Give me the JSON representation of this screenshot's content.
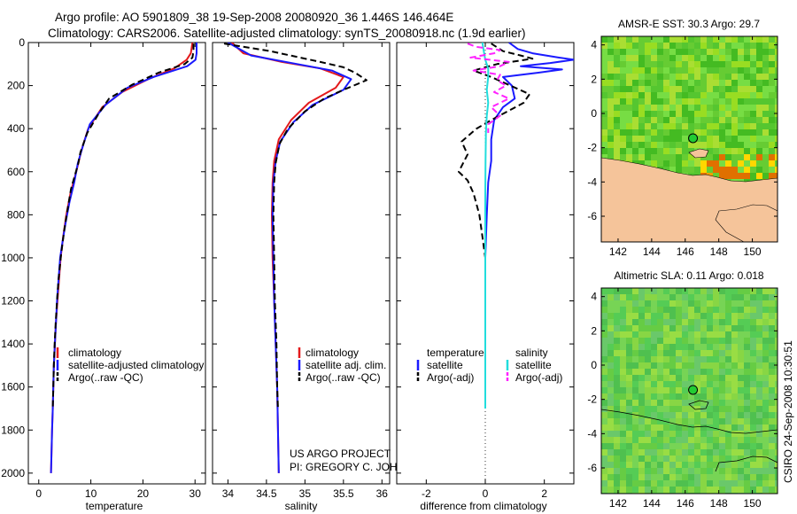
{
  "title_line1": "Argo profile: AO 5901809_38 19-Sep-2008 20080920_36 1.446S 146.464E",
  "title_line2": "Climatology: CARS2006. Satellite-adjusted climatology: synTS_20080918.nc (1.9d earlier)",
  "credit_line1": "US ARGO PROJECT",
  "credit_line2": "PI: GREGORY C. JOHNSON",
  "timestamp": "CSIRO 24-Sep-2008 10:30:51",
  "colors": {
    "climatology": "#e41a1c",
    "satellite": "#1a1aff",
    "argo": "#000000",
    "sal_satellite": "#22dddd",
    "sal_argo": "#ff22ff",
    "land": "#f5c49a"
  },
  "chart_data": [
    {
      "type": "line",
      "xlabel": "temperature",
      "xlim": [
        -2,
        32
      ],
      "ylim": [
        0,
        2050
      ],
      "xticks": [
        0,
        10,
        20,
        30
      ],
      "xtick_labels": [
        "0",
        "10",
        "20",
        "30"
      ],
      "yticks": [
        0,
        200,
        400,
        600,
        800,
        1000,
        1200,
        1400,
        1600,
        1800,
        2000
      ],
      "ytick_labels": [
        "0",
        "200",
        "400",
        "600",
        "800",
        "1000",
        "1200",
        "1400",
        "1600",
        "1800",
        "2000"
      ],
      "legend": [
        "climatology",
        "satellite-adjusted climatology",
        "Argo(..raw -QC)"
      ],
      "series": [
        {
          "name": "climatology",
          "style": "solid",
          "color": "#e41a1c",
          "points": [
            [
              29.5,
              0
            ],
            [
              29.2,
              50
            ],
            [
              28.4,
              80
            ],
            [
              26,
              120
            ],
            [
              21,
              170
            ],
            [
              16,
              230
            ],
            [
              12.2,
              300
            ],
            [
              9.5,
              400
            ],
            [
              8.2,
              500
            ],
            [
              7.2,
              600
            ],
            [
              6.1,
              700
            ],
            [
              5.3,
              800
            ],
            [
              4.7,
              900
            ],
            [
              4.2,
              1000
            ],
            [
              3.9,
              1100
            ],
            [
              3.6,
              1200
            ],
            [
              3.3,
              1300
            ],
            [
              3.1,
              1400
            ],
            [
              2.9,
              1500
            ],
            [
              2.8,
              1600
            ],
            [
              2.7,
              1700
            ],
            [
              2.55,
              1800
            ],
            [
              2.45,
              1900
            ],
            [
              2.35,
              2000
            ]
          ]
        },
        {
          "name": "satellite-adjusted climatology",
          "style": "solid",
          "color": "#1a1aff",
          "points": [
            [
              30.3,
              0
            ],
            [
              30.3,
              50
            ],
            [
              30.1,
              80
            ],
            [
              28.5,
              110
            ],
            [
              22,
              160
            ],
            [
              17,
              210
            ],
            [
              12.8,
              290
            ],
            [
              9.8,
              380
            ],
            [
              8.6,
              470
            ],
            [
              7.5,
              560
            ],
            [
              6.8,
              650
            ],
            [
              5.9,
              740
            ],
            [
              5.2,
              830
            ],
            [
              4.6,
              920
            ],
            [
              4.1,
              1000
            ],
            [
              3.8,
              1100
            ],
            [
              3.5,
              1200
            ],
            [
              3.3,
              1300
            ],
            [
              3.1,
              1400
            ],
            [
              2.9,
              1500
            ],
            [
              2.8,
              1600
            ],
            [
              2.7,
              1700
            ],
            [
              2.55,
              1800
            ],
            [
              2.45,
              1900
            ],
            [
              2.35,
              2000
            ]
          ]
        },
        {
          "name": "Argo(..raw -QC)",
          "style": "dashed",
          "color": "#000000",
          "points": [
            [
              29.7,
              5
            ],
            [
              29.7,
              40
            ],
            [
              29.5,
              70
            ],
            [
              28,
              100
            ],
            [
              23,
              140
            ],
            [
              18,
              195
            ],
            [
              13.5,
              260
            ],
            [
              11.5,
              330
            ],
            [
              9.3,
              420
            ],
            [
              8,
              510
            ],
            [
              7.6,
              560
            ],
            [
              6.2,
              680
            ],
            [
              5.5,
              780
            ],
            [
              4.9,
              870
            ],
            [
              4.3,
              980
            ],
            [
              3.8,
              1100
            ],
            [
              3.5,
              1200
            ],
            [
              3.25,
              1300
            ],
            [
              3.05,
              1400
            ],
            [
              2.9,
              1500
            ],
            [
              2.8,
              1600
            ],
            [
              2.7,
              1700
            ]
          ]
        }
      ]
    },
    {
      "type": "line",
      "xlabel": "salinity",
      "xlim": [
        33.8,
        36.1
      ],
      "ylim": [
        0,
        2050
      ],
      "xticks": [
        34,
        34.5,
        35,
        35.5,
        36
      ],
      "xtick_labels": [
        "34",
        "34.5",
        "35",
        "35.5",
        "36"
      ],
      "legend": [
        "climatology",
        "satellite adj. clim.",
        "Argo(..raw -QC)"
      ],
      "series": [
        {
          "name": "climatology",
          "style": "solid",
          "color": "#e41a1c",
          "points": [
            [
              34.05,
              0
            ],
            [
              34.2,
              50
            ],
            [
              34.7,
              90
            ],
            [
              35.2,
              120
            ],
            [
              35.5,
              160
            ],
            [
              35.4,
              210
            ],
            [
              35.05,
              280
            ],
            [
              34.82,
              360
            ],
            [
              34.66,
              450
            ],
            [
              34.6,
              550
            ],
            [
              34.58,
              650
            ],
            [
              34.57,
              800
            ],
            [
              34.58,
              1000
            ],
            [
              34.6,
              1200
            ],
            [
              34.62,
              1400
            ],
            [
              34.64,
              1600
            ],
            [
              34.65,
              1800
            ],
            [
              34.66,
              2000
            ]
          ]
        },
        {
          "name": "satellite adj. clim.",
          "style": "solid",
          "color": "#1a1aff",
          "points": [
            [
              34.0,
              0
            ],
            [
              34.3,
              60
            ],
            [
              34.9,
              100
            ],
            [
              35.35,
              130
            ],
            [
              35.6,
              170
            ],
            [
              35.5,
              220
            ],
            [
              35.1,
              290
            ],
            [
              34.85,
              370
            ],
            [
              34.68,
              460
            ],
            [
              34.62,
              550
            ],
            [
              34.59,
              650
            ],
            [
              34.58,
              800
            ],
            [
              34.59,
              1000
            ],
            [
              34.6,
              1200
            ],
            [
              34.62,
              1400
            ],
            [
              34.64,
              1600
            ],
            [
              34.65,
              1800
            ],
            [
              34.66,
              2000
            ]
          ]
        },
        {
          "name": "Argo(..raw -QC)",
          "style": "dashed",
          "color": "#000000",
          "points": [
            [
              33.95,
              5
            ],
            [
              34.55,
              40
            ],
            [
              35.2,
              90
            ],
            [
              35.5,
              115
            ],
            [
              35.65,
              140
            ],
            [
              35.8,
              175
            ],
            [
              35.5,
              220
            ],
            [
              35.25,
              260
            ],
            [
              35.0,
              320
            ],
            [
              34.78,
              400
            ],
            [
              34.67,
              470
            ],
            [
              34.62,
              560
            ],
            [
              34.6,
              650
            ],
            [
              34.59,
              800
            ],
            [
              34.6,
              1000
            ],
            [
              34.61,
              1200
            ],
            [
              34.63,
              1400
            ],
            [
              34.64,
              1600
            ],
            [
              34.65,
              1700
            ]
          ]
        }
      ]
    },
    {
      "type": "line",
      "xlabel": "difference from climatology",
      "xlim": [
        -3,
        3
      ],
      "ylim": [
        0,
        2050
      ],
      "xticks": [
        -2,
        0,
        2
      ],
      "xtick_labels": [
        "-2",
        "0",
        "2"
      ],
      "legend_temperature": {
        "heading": "temperature",
        "items": [
          "satellite",
          "Argo(-adj)"
        ]
      },
      "legend_salinity": {
        "heading": "salinity",
        "items": [
          "satellite",
          "Argo(-adj)"
        ]
      },
      "series": [
        {
          "name": "temperature satellite",
          "style": "solid",
          "color": "#1a1aff",
          "points": [
            [
              0.8,
              0
            ],
            [
              1.1,
              30
            ],
            [
              1.6,
              50
            ],
            [
              2.5,
              70
            ],
            [
              3.0,
              80
            ],
            [
              2.2,
              95
            ],
            [
              1.2,
              110
            ],
            [
              2.6,
              125
            ],
            [
              1.8,
              140
            ],
            [
              0.6,
              160
            ],
            [
              0.9,
              200
            ],
            [
              1.0,
              260
            ],
            [
              0.6,
              300
            ],
            [
              0.3,
              360
            ],
            [
              0.2,
              450
            ],
            [
              0.2,
              550
            ],
            [
              0.1,
              650
            ],
            [
              0.05,
              800
            ],
            [
              0.0,
              1000
            ],
            [
              0.0,
              1400
            ],
            [
              0.0,
              1700
            ]
          ]
        },
        {
          "name": "temperature Argo(-adj)",
          "style": "dashed",
          "color": "#000000",
          "points": [
            [
              0.2,
              5
            ],
            [
              0.6,
              40
            ],
            [
              1.2,
              60
            ],
            [
              1.6,
              75
            ],
            [
              0.4,
              100
            ],
            [
              -0.4,
              130
            ],
            [
              0.2,
              160
            ],
            [
              1.5,
              240
            ],
            [
              1.3,
              280
            ],
            [
              0.2,
              360
            ],
            [
              -0.3,
              400
            ],
            [
              -0.8,
              460
            ],
            [
              -0.6,
              520
            ],
            [
              -0.9,
              600
            ],
            [
              -0.6,
              640
            ],
            [
              -0.4,
              700
            ],
            [
              -0.2,
              800
            ],
            [
              -0.1,
              900
            ],
            [
              0,
              1000
            ],
            [
              0,
              1300
            ],
            [
              0,
              1700
            ]
          ]
        },
        {
          "name": "salinity satellite",
          "style": "solid",
          "color": "#22dddd",
          "points": [
            [
              -0.1,
              0
            ],
            [
              -0.05,
              40
            ],
            [
              0,
              80
            ],
            [
              0.1,
              120
            ],
            [
              0.1,
              160
            ],
            [
              0.05,
              220
            ],
            [
              0.1,
              280
            ],
            [
              0.05,
              340
            ],
            [
              0.02,
              420
            ],
            [
              0.01,
              550
            ],
            [
              0.0,
              700
            ],
            [
              0.0,
              1000
            ],
            [
              0.0,
              1300
            ],
            [
              0.0,
              1700
            ]
          ]
        },
        {
          "name": "salinity Argo(-adj)",
          "style": "dashed",
          "color": "#ff22ff",
          "points": [
            [
              -0.6,
              5
            ],
            [
              -0.3,
              20
            ],
            [
              0.5,
              35
            ],
            [
              0.3,
              50
            ],
            [
              -0.5,
              70
            ],
            [
              0.8,
              90
            ],
            [
              0.5,
              110
            ],
            [
              -0.4,
              130
            ],
            [
              0.5,
              150
            ],
            [
              0.4,
              175
            ],
            [
              0.7,
              200
            ],
            [
              0.3,
              230
            ],
            [
              0.8,
              260
            ],
            [
              0.2,
              300
            ],
            [
              0.5,
              340
            ],
            [
              0.1,
              380
            ],
            [
              0.1,
              420
            ]
          ]
        }
      ]
    },
    {
      "type": "heatmap",
      "title": "AMSR-E SST: 30.3 Argo: 29.7",
      "xlim": [
        141,
        151.5
      ],
      "ylim": [
        -7.5,
        4.5
      ],
      "xticks": [
        142,
        144,
        146,
        148,
        150
      ],
      "xtick_labels": [
        "142",
        "144",
        "146",
        "148",
        "150"
      ],
      "yticks": [
        -6,
        -4,
        -2,
        0,
        2,
        4
      ],
      "ytick_labels": [
        "-6",
        "-4",
        "-2",
        "0",
        "2",
        "4"
      ],
      "argo_position": [
        146.464,
        -1.446
      ]
    },
    {
      "type": "heatmap",
      "title": "Altimetric SLA: 0.11 Argo: 0.018",
      "xlim": [
        141,
        151.5
      ],
      "ylim": [
        -7.5,
        4.5
      ],
      "xticks": [
        142,
        144,
        146,
        148,
        150
      ],
      "xtick_labels": [
        "142",
        "144",
        "146",
        "148",
        "150"
      ],
      "yticks": [
        -6,
        -4,
        -2,
        0,
        2,
        4
      ],
      "ytick_labels": [
        "-6",
        "-4",
        "-2",
        "0",
        "2",
        "4"
      ],
      "argo_position": [
        146.464,
        -1.446
      ]
    }
  ]
}
